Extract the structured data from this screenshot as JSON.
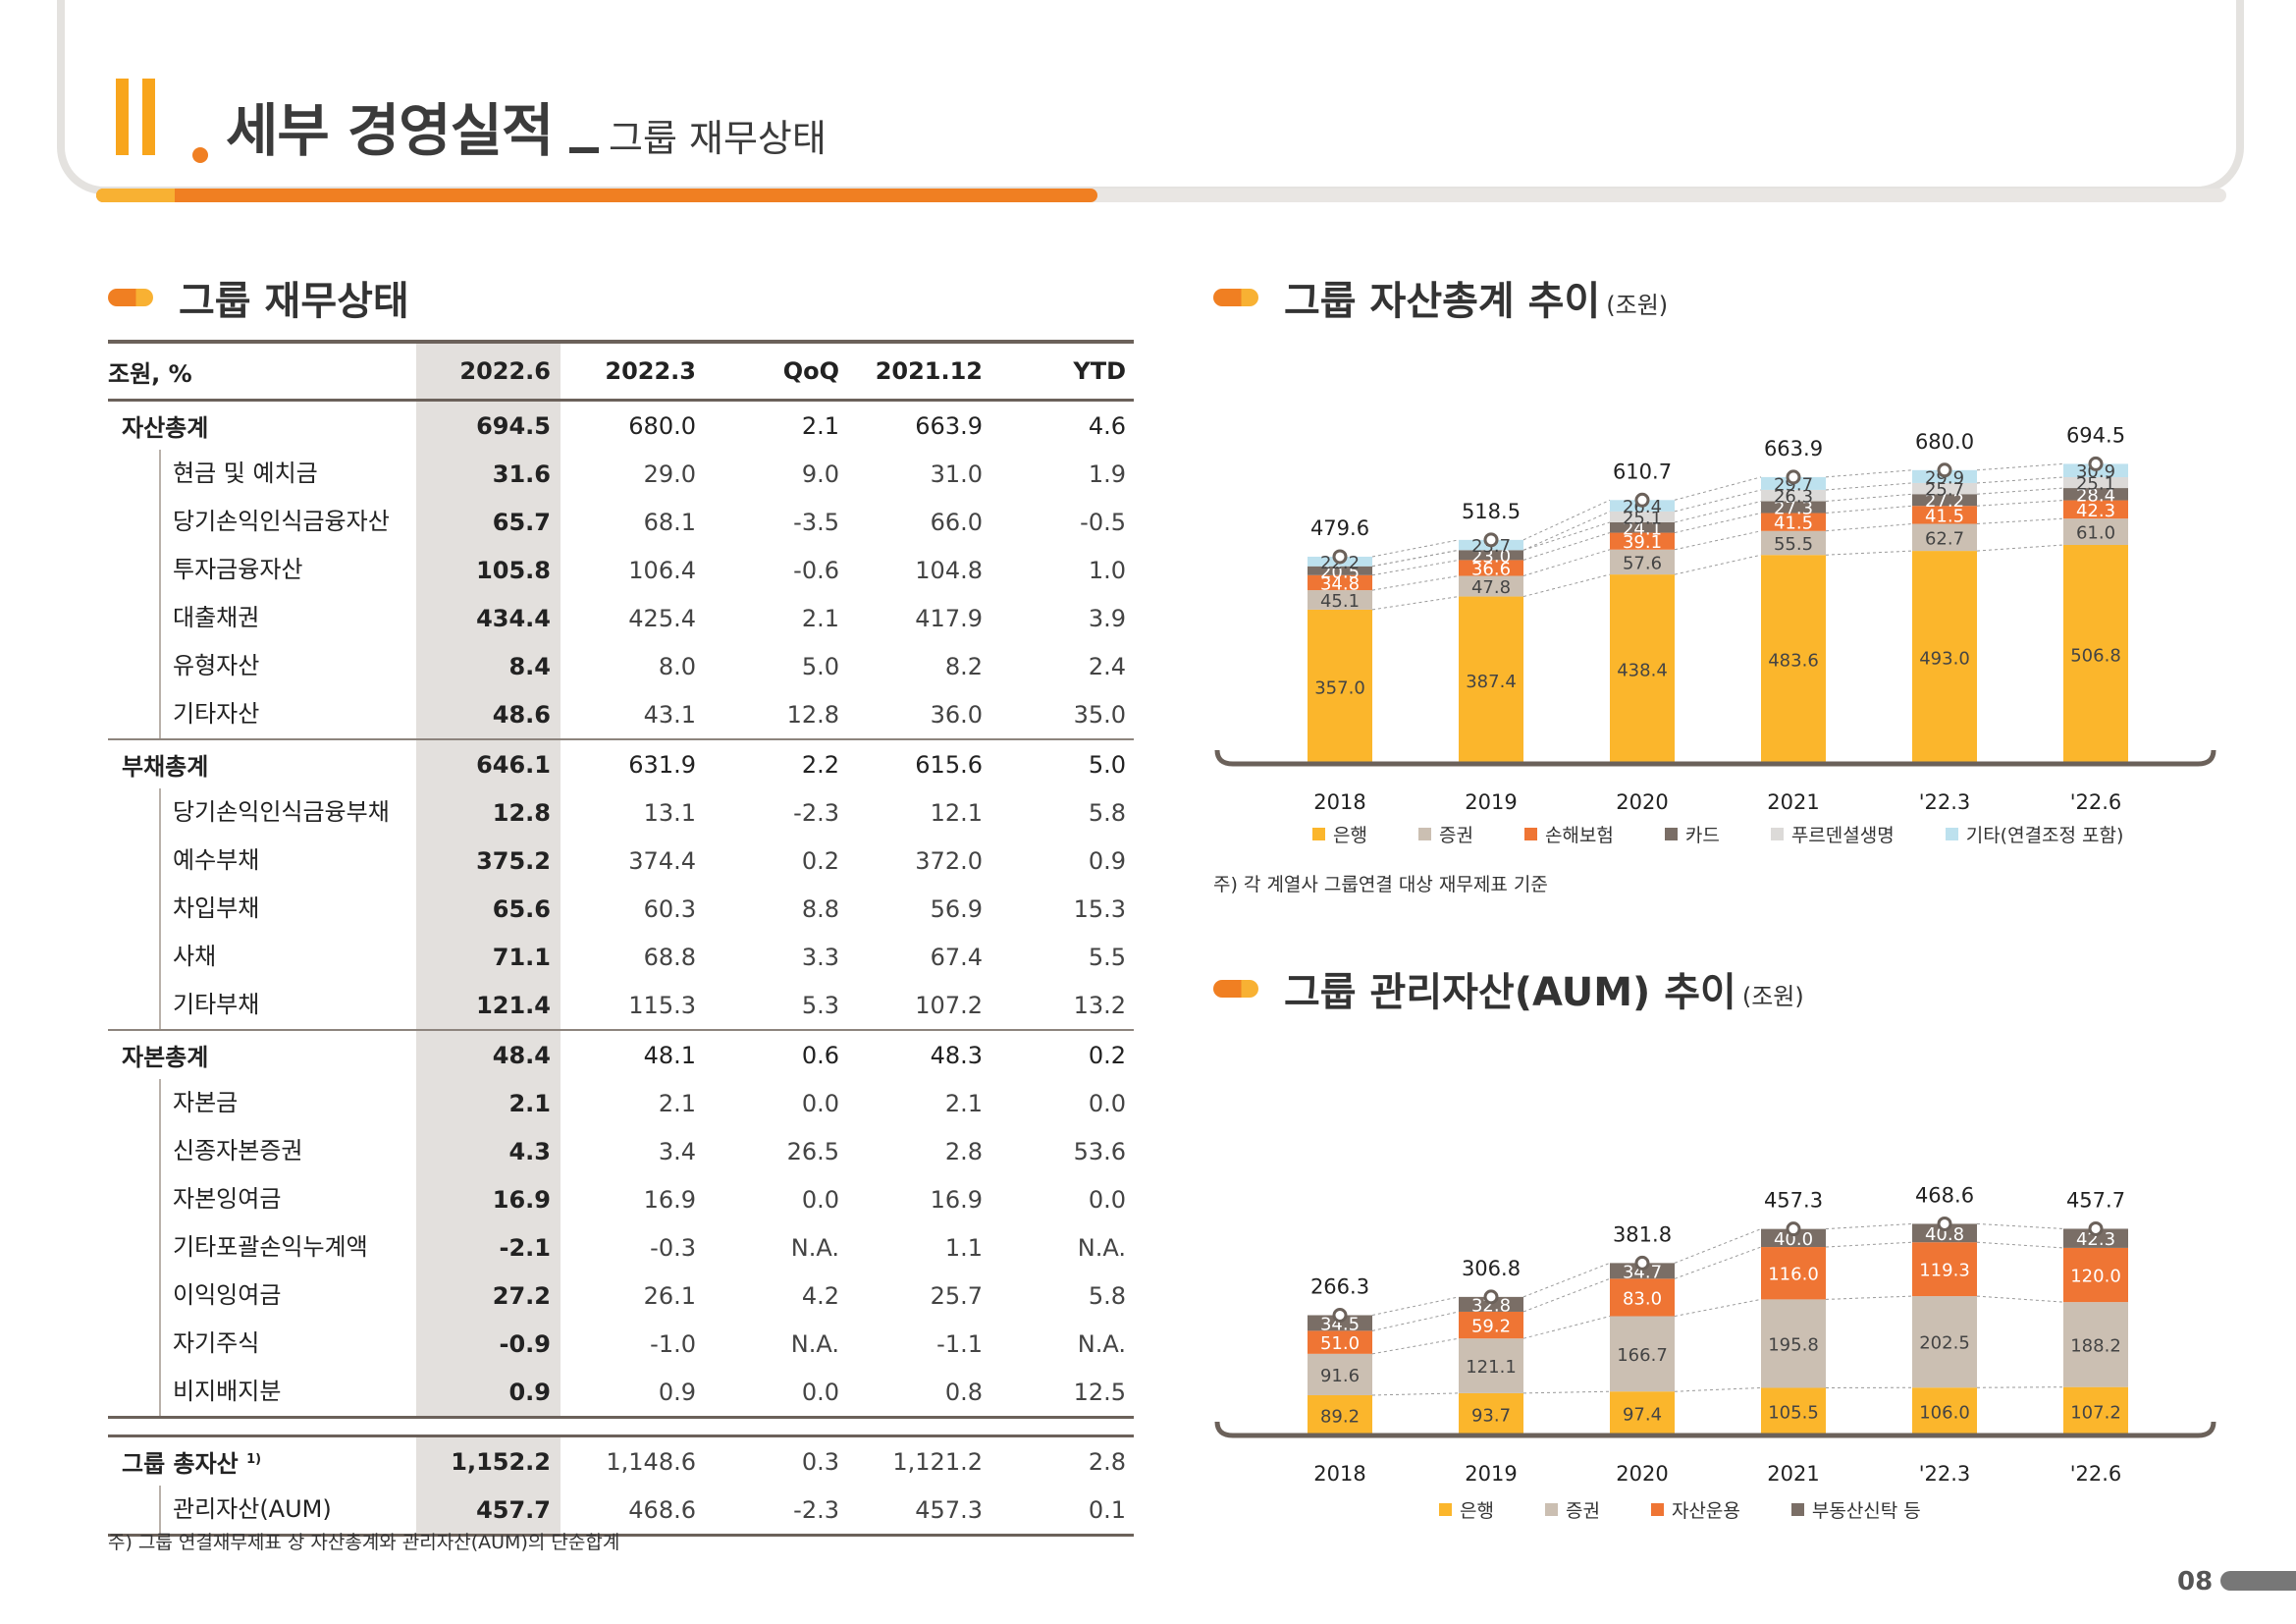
{
  "header": {
    "section_numeral": "II",
    "title": "세부 경영실적",
    "separator": "_",
    "subtitle": "그룹 재무상태",
    "progress": 0.47
  },
  "page_number": "08",
  "colors": {
    "accent": "#f07f22",
    "accent_light": "#f8b133",
    "gray_dark": "#6b615a",
    "shade": "#e3e0dd"
  },
  "table": {
    "title": "그룹 재무상태",
    "headers": [
      "조원, %",
      "2022.6",
      "2022.3",
      "QoQ",
      "2021.12",
      "YTD"
    ],
    "rows": [
      {
        "kind": "grp",
        "label": "자산총계",
        "values": [
          "694.5",
          "680.0",
          "2.1",
          "663.9",
          "4.6"
        ]
      },
      {
        "kind": "sub",
        "label": "현금 및 예치금",
        "values": [
          "31.6",
          "29.0",
          "9.0",
          "31.0",
          "1.9"
        ]
      },
      {
        "kind": "sub",
        "label": "당기손익인식금융자산",
        "values": [
          "65.7",
          "68.1",
          "-3.5",
          "66.0",
          "-0.5"
        ]
      },
      {
        "kind": "sub",
        "label": "투자금융자산",
        "values": [
          "105.8",
          "106.4",
          "-0.6",
          "104.8",
          "1.0"
        ]
      },
      {
        "kind": "sub",
        "label": "대출채권",
        "values": [
          "434.4",
          "425.4",
          "2.1",
          "417.9",
          "3.9"
        ]
      },
      {
        "kind": "sub",
        "label": "유형자산",
        "values": [
          "8.4",
          "8.0",
          "5.0",
          "8.2",
          "2.4"
        ]
      },
      {
        "kind": "sub",
        "label": "기타자산",
        "values": [
          "48.6",
          "43.1",
          "12.8",
          "36.0",
          "35.0"
        ]
      },
      {
        "kind": "grp",
        "label": "부채총계",
        "values": [
          "646.1",
          "631.9",
          "2.2",
          "615.6",
          "5.0"
        ]
      },
      {
        "kind": "sub",
        "label": "당기손익인식금융부채",
        "values": [
          "12.8",
          "13.1",
          "-2.3",
          "12.1",
          "5.8"
        ]
      },
      {
        "kind": "sub",
        "label": "예수부채",
        "values": [
          "375.2",
          "374.4",
          "0.2",
          "372.0",
          "0.9"
        ]
      },
      {
        "kind": "sub",
        "label": "차입부채",
        "values": [
          "65.6",
          "60.3",
          "8.8",
          "56.9",
          "15.3"
        ]
      },
      {
        "kind": "sub",
        "label": "사채",
        "values": [
          "71.1",
          "68.8",
          "3.3",
          "67.4",
          "5.5"
        ]
      },
      {
        "kind": "sub",
        "label": "기타부채",
        "values": [
          "121.4",
          "115.3",
          "5.3",
          "107.2",
          "13.2"
        ]
      },
      {
        "kind": "grp",
        "label": "자본총계",
        "values": [
          "48.4",
          "48.1",
          "0.6",
          "48.3",
          "0.2"
        ]
      },
      {
        "kind": "sub",
        "label": "자본금",
        "values": [
          "2.1",
          "2.1",
          "0.0",
          "2.1",
          "0.0"
        ]
      },
      {
        "kind": "sub",
        "label": "신종자본증권",
        "values": [
          "4.3",
          "3.4",
          "26.5",
          "2.8",
          "53.6"
        ]
      },
      {
        "kind": "sub",
        "label": "자본잉여금",
        "values": [
          "16.9",
          "16.9",
          "0.0",
          "16.9",
          "0.0"
        ]
      },
      {
        "kind": "sub",
        "label": "기타포괄손익누계액",
        "values": [
          "-2.1",
          "-0.3",
          "N.A.",
          "1.1",
          "N.A."
        ]
      },
      {
        "kind": "sub",
        "label": "이익잉여금",
        "values": [
          "27.2",
          "26.1",
          "4.2",
          "25.7",
          "5.8"
        ]
      },
      {
        "kind": "sub",
        "label": "자기주식",
        "values": [
          "-0.9",
          "-1.0",
          "N.A.",
          "-1.1",
          "N.A."
        ]
      },
      {
        "kind": "sub",
        "label": "비지배지분",
        "values": [
          "0.9",
          "0.9",
          "0.0",
          "0.8",
          "12.5"
        ]
      }
    ],
    "summary": [
      {
        "label": "그룹 총자산",
        "sup": "1)",
        "values": [
          "1,152.2",
          "1,148.6",
          "0.3",
          "1,121.2",
          "2.8"
        ]
      },
      {
        "label": "관리자산(AUM)",
        "values": [
          "457.7",
          "468.6",
          "-2.3",
          "457.3",
          "0.1"
        ]
      }
    ],
    "note": "주) 그룹 연결재무제표 상 자산총계와 관리자산(AUM)의 단순합계"
  },
  "assets_section": {
    "title": "그룹 자산총계 추이",
    "unit": "(조원)",
    "note": "주) 각 계열사 그룹연결 대상 재무제표 기준"
  },
  "aum_section": {
    "title": "그룹 관리자산(AUM) 추이",
    "unit": "(조원)"
  },
  "chart_data": [
    {
      "type": "bar",
      "stacked": true,
      "title": "그룹 자산총계 추이",
      "unit": "(조원)",
      "categories": [
        "2018",
        "2019",
        "2020",
        "2021",
        "'22.3",
        "'22.6"
      ],
      "totals": [
        "479.6",
        "518.5",
        "610.7",
        "663.9",
        "680.0",
        "694.5"
      ],
      "series": [
        {
          "name": "은행",
          "color": "#fbb62c",
          "values": [
            357.0,
            387.4,
            438.4,
            483.6,
            493.0,
            506.8
          ]
        },
        {
          "name": "증권",
          "color": "#cbbfb2",
          "values": [
            45.1,
            47.8,
            57.6,
            55.5,
            62.7,
            61.0
          ]
        },
        {
          "name": "손해보험",
          "color": "#ef7534",
          "values": [
            34.8,
            36.6,
            39.1,
            41.5,
            41.5,
            42.3
          ]
        },
        {
          "name": "카드",
          "color": "#7a6e66",
          "values": [
            20.5,
            23.0,
            24.1,
            27.3,
            27.2,
            28.4
          ]
        },
        {
          "name": "푸르덴셜생명",
          "color": "#dcdad8",
          "values": [
            null,
            null,
            25.1,
            26.3,
            25.7,
            25.1
          ]
        },
        {
          "name": "기타(연결조정 포함)",
          "color": "#bde1ee",
          "values": [
            22.2,
            23.7,
            26.4,
            29.7,
            29.9,
            30.9
          ]
        }
      ],
      "legend_position": "bottom"
    },
    {
      "type": "bar",
      "stacked": true,
      "title": "그룹 관리자산(AUM) 추이",
      "unit": "(조원)",
      "categories": [
        "2018",
        "2019",
        "2020",
        "2021",
        "'22.3",
        "'22.6"
      ],
      "totals": [
        "266.3",
        "306.8",
        "381.8",
        "457.3",
        "468.6",
        "457.7"
      ],
      "series": [
        {
          "name": "은행",
          "color": "#fbb62c",
          "values": [
            89.2,
            93.7,
            97.4,
            105.5,
            106.0,
            107.2
          ]
        },
        {
          "name": "증권",
          "color": "#cbbfb2",
          "values": [
            91.6,
            121.1,
            166.7,
            195.8,
            202.5,
            188.2
          ]
        },
        {
          "name": "자산운용",
          "color": "#ef7534",
          "values": [
            51.0,
            59.2,
            83.0,
            116.0,
            119.3,
            120.0
          ]
        },
        {
          "name": "부동산신탁 등",
          "color": "#7a6e66",
          "values": [
            34.5,
            32.8,
            34.7,
            40.0,
            40.8,
            42.3
          ]
        }
      ],
      "legend_position": "bottom"
    }
  ]
}
